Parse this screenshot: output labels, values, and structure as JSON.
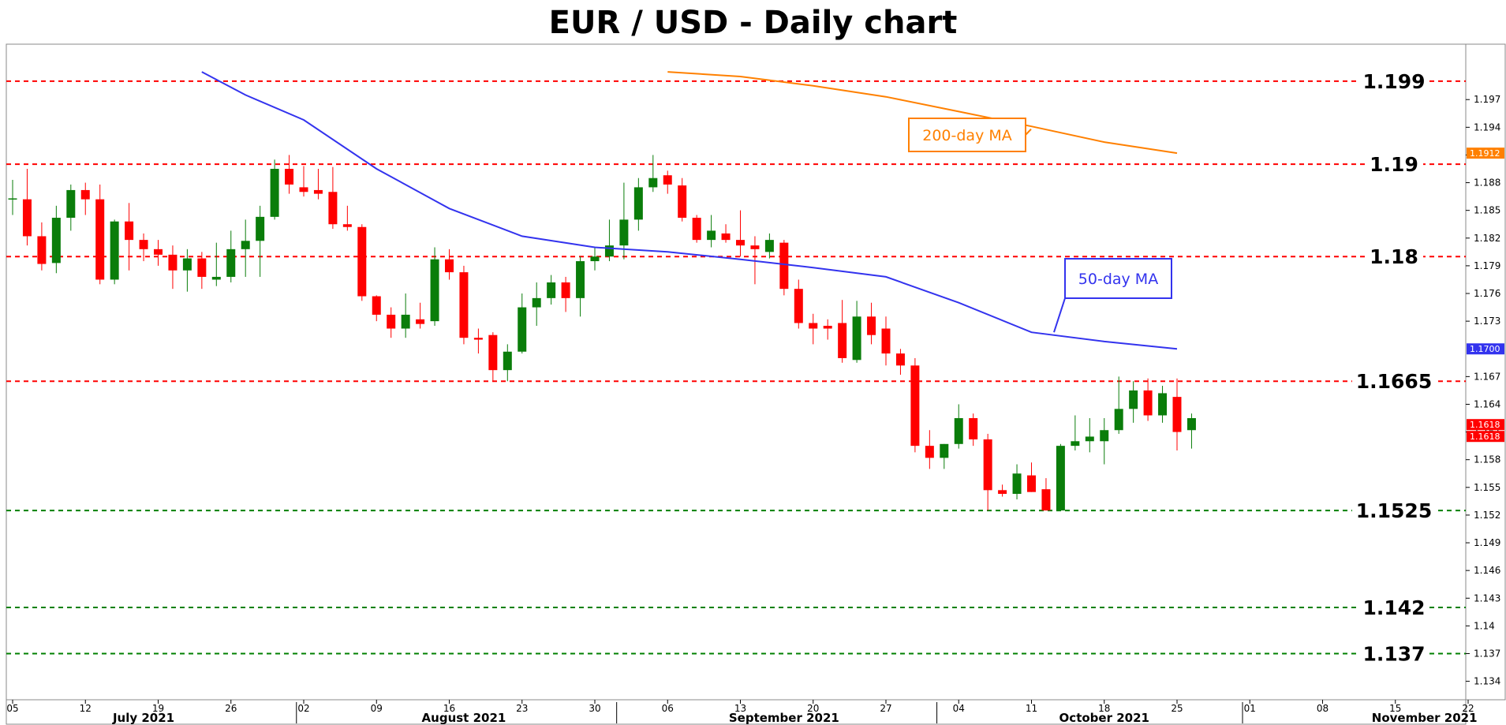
{
  "chart_data": {
    "type": "candlestick",
    "title": "EUR / USD - Daily chart",
    "ylim": [
      1.132,
      1.203
    ],
    "y_ticks": [
      {
        "value": 1.197,
        "label": "1.197"
      },
      {
        "value": 1.194,
        "label": "1.194"
      },
      {
        "value": 1.191,
        "label": "1.191"
      },
      {
        "value": 1.188,
        "label": "1.188"
      },
      {
        "value": 1.185,
        "label": "1.185"
      },
      {
        "value": 1.182,
        "label": "1.182"
      },
      {
        "value": 1.179,
        "label": "1.179"
      },
      {
        "value": 1.176,
        "label": "1.176"
      },
      {
        "value": 1.173,
        "label": "1.173"
      },
      {
        "value": 1.167,
        "label": "1.167"
      },
      {
        "value": 1.164,
        "label": "1.164"
      },
      {
        "value": 1.161,
        "label": "1.161"
      },
      {
        "value": 1.158,
        "label": "1.158"
      },
      {
        "value": 1.155,
        "label": "1.155"
      },
      {
        "value": 1.152,
        "label": "1.152"
      },
      {
        "value": 1.149,
        "label": "1.149"
      },
      {
        "value": 1.146,
        "label": "1.146"
      },
      {
        "value": 1.143,
        "label": "1.143"
      },
      {
        "value": 1.14,
        "label": "1.14"
      },
      {
        "value": 1.137,
        "label": "1.137"
      },
      {
        "value": 1.134,
        "label": "1.134"
      }
    ],
    "x_day_ticks": [
      "05",
      "12",
      "19",
      "26",
      "02",
      "09",
      "16",
      "23",
      "30",
      "06",
      "13",
      "20",
      "27",
      "04",
      "11",
      "18",
      "25",
      "01",
      "08",
      "15",
      "22"
    ],
    "x_day_tick_index": [
      0,
      5,
      10,
      15,
      20,
      25,
      30,
      35,
      40,
      45,
      50,
      55,
      60,
      65,
      70,
      75,
      80,
      85,
      90,
      95,
      100
    ],
    "month_labels": [
      {
        "label": "July 2021",
        "center_index": 9
      },
      {
        "label": "August 2021",
        "center_index": 31
      },
      {
        "label": "September 2021",
        "center_index": 53
      },
      {
        "label": "October 2021",
        "center_index": 75
      },
      {
        "label": "November 2021",
        "center_index": 97
      }
    ],
    "month_separators_index": [
      19.5,
      41.5,
      63.5,
      84.5
    ],
    "levels": [
      {
        "value": 1.199,
        "label": "1.199",
        "color": "#ff0000"
      },
      {
        "value": 1.19,
        "label": "1.19",
        "color": "#ff0000"
      },
      {
        "value": 1.18,
        "label": "1.18",
        "color": "#ff0000"
      },
      {
        "value": 1.1665,
        "label": "1.1665",
        "color": "#ff0000"
      },
      {
        "value": 1.1525,
        "label": "1.1525",
        "color": "#008000"
      },
      {
        "value": 1.142,
        "label": "1.142",
        "color": "#008000"
      },
      {
        "value": 1.137,
        "label": "1.137",
        "color": "#008000"
      }
    ],
    "moving_averages": [
      {
        "name": "50-day MA",
        "color": "#3333ee",
        "x": [
          13,
          16,
          20,
          25,
          30,
          35,
          40,
          45,
          50,
          55,
          60,
          65,
          70,
          75,
          80
        ],
        "y": [
          1.2,
          1.1975,
          1.1948,
          1.1895,
          1.1852,
          1.1822,
          1.181,
          1.1805,
          1.1797,
          1.1788,
          1.1778,
          1.175,
          1.1718,
          1.1708,
          1.17
        ]
      },
      {
        "name": "200-day MA",
        "color": "#ff8000",
        "x": [
          45,
          50,
          55,
          60,
          65,
          70,
          75,
          80
        ],
        "y": [
          1.2,
          1.1995,
          1.1985,
          1.1973,
          1.1957,
          1.1941,
          1.1924,
          1.1912
        ]
      }
    ],
    "price_badges": [
      {
        "value": 1.1912,
        "label": "1.1912",
        "color": "#ff8000"
      },
      {
        "value": 1.17,
        "label": "1.1700",
        "color": "#3333ee"
      },
      {
        "value": 1.1618,
        "label": "1.1618",
        "color": "#ff0000"
      }
    ],
    "candles": [
      {
        "o": 1.1863,
        "h": 1.1883,
        "l": 1.1845,
        "c": 1.1863
      },
      {
        "o": 1.1862,
        "h": 1.1895,
        "l": 1.1812,
        "c": 1.1822
      },
      {
        "o": 1.1822,
        "h": 1.1837,
        "l": 1.1785,
        "c": 1.1792
      },
      {
        "o": 1.1793,
        "h": 1.1855,
        "l": 1.1782,
        "c": 1.1842
      },
      {
        "o": 1.1842,
        "h": 1.1878,
        "l": 1.1828,
        "c": 1.1872
      },
      {
        "o": 1.1872,
        "h": 1.188,
        "l": 1.1845,
        "c": 1.1862
      },
      {
        "o": 1.1862,
        "h": 1.1878,
        "l": 1.177,
        "c": 1.1775
      },
      {
        "o": 1.1775,
        "h": 1.184,
        "l": 1.177,
        "c": 1.1838
      },
      {
        "o": 1.1838,
        "h": 1.1858,
        "l": 1.1785,
        "c": 1.1818
      },
      {
        "o": 1.1818,
        "h": 1.1825,
        "l": 1.1795,
        "c": 1.1808
      },
      {
        "o": 1.1808,
        "h": 1.1818,
        "l": 1.179,
        "c": 1.1802
      },
      {
        "o": 1.1802,
        "h": 1.1812,
        "l": 1.1765,
        "c": 1.1785
      },
      {
        "o": 1.1785,
        "h": 1.1808,
        "l": 1.1762,
        "c": 1.1798
      },
      {
        "o": 1.1798,
        "h": 1.1805,
        "l": 1.1765,
        "c": 1.1778
      },
      {
        "o": 1.1775,
        "h": 1.1815,
        "l": 1.1768,
        "c": 1.1778
      },
      {
        "o": 1.1778,
        "h": 1.1828,
        "l": 1.1772,
        "c": 1.1808
      },
      {
        "o": 1.1808,
        "h": 1.184,
        "l": 1.1778,
        "c": 1.1817
      },
      {
        "o": 1.1817,
        "h": 1.1855,
        "l": 1.1778,
        "c": 1.1843
      },
      {
        "o": 1.1843,
        "h": 1.1905,
        "l": 1.184,
        "c": 1.1895
      },
      {
        "o": 1.1895,
        "h": 1.191,
        "l": 1.1868,
        "c": 1.1878
      },
      {
        "o": 1.1875,
        "h": 1.1898,
        "l": 1.1865,
        "c": 1.187
      },
      {
        "o": 1.1872,
        "h": 1.1895,
        "l": 1.1862,
        "c": 1.1868
      },
      {
        "o": 1.187,
        "h": 1.1897,
        "l": 1.183,
        "c": 1.1835
      },
      {
        "o": 1.1835,
        "h": 1.1855,
        "l": 1.1828,
        "c": 1.1832
      },
      {
        "o": 1.1832,
        "h": 1.1835,
        "l": 1.1752,
        "c": 1.1757
      },
      {
        "o": 1.1757,
        "h": 1.1758,
        "l": 1.173,
        "c": 1.1737
      },
      {
        "o": 1.1737,
        "h": 1.1745,
        "l": 1.1712,
        "c": 1.1722
      },
      {
        "o": 1.1722,
        "h": 1.176,
        "l": 1.1712,
        "c": 1.1737
      },
      {
        "o": 1.1732,
        "h": 1.175,
        "l": 1.1722,
        "c": 1.1727
      },
      {
        "o": 1.173,
        "h": 1.181,
        "l": 1.1725,
        "c": 1.1797
      },
      {
        "o": 1.1797,
        "h": 1.1808,
        "l": 1.1775,
        "c": 1.1783
      },
      {
        "o": 1.1783,
        "h": 1.179,
        "l": 1.1705,
        "c": 1.1712
      },
      {
        "o": 1.1712,
        "h": 1.1722,
        "l": 1.1695,
        "c": 1.171
      },
      {
        "o": 1.1715,
        "h": 1.1718,
        "l": 1.1665,
        "c": 1.1677
      },
      {
        "o": 1.1677,
        "h": 1.1705,
        "l": 1.1665,
        "c": 1.1697
      },
      {
        "o": 1.1697,
        "h": 1.176,
        "l": 1.1695,
        "c": 1.1745
      },
      {
        "o": 1.1745,
        "h": 1.1772,
        "l": 1.1725,
        "c": 1.1755
      },
      {
        "o": 1.1755,
        "h": 1.178,
        "l": 1.1748,
        "c": 1.1772
      },
      {
        "o": 1.1772,
        "h": 1.1778,
        "l": 1.174,
        "c": 1.1755
      },
      {
        "o": 1.1755,
        "h": 1.18,
        "l": 1.1735,
        "c": 1.1795
      },
      {
        "o": 1.1795,
        "h": 1.181,
        "l": 1.1785,
        "c": 1.18
      },
      {
        "o": 1.18,
        "h": 1.184,
        "l": 1.1795,
        "c": 1.1812
      },
      {
        "o": 1.1812,
        "h": 1.188,
        "l": 1.1797,
        "c": 1.184
      },
      {
        "o": 1.184,
        "h": 1.1885,
        "l": 1.1828,
        "c": 1.1875
      },
      {
        "o": 1.1875,
        "h": 1.191,
        "l": 1.187,
        "c": 1.1885
      },
      {
        "o": 1.1888,
        "h": 1.1893,
        "l": 1.1868,
        "c": 1.1878
      },
      {
        "o": 1.1877,
        "h": 1.1885,
        "l": 1.1838,
        "c": 1.1842
      },
      {
        "o": 1.1842,
        "h": 1.1845,
        "l": 1.1815,
        "c": 1.1818
      },
      {
        "o": 1.1818,
        "h": 1.1845,
        "l": 1.181,
        "c": 1.1828
      },
      {
        "o": 1.1825,
        "h": 1.1835,
        "l": 1.1815,
        "c": 1.1818
      },
      {
        "o": 1.1818,
        "h": 1.185,
        "l": 1.18,
        "c": 1.1812
      },
      {
        "o": 1.1812,
        "h": 1.1822,
        "l": 1.177,
        "c": 1.1808
      },
      {
        "o": 1.1805,
        "h": 1.1825,
        "l": 1.1798,
        "c": 1.1818
      },
      {
        "o": 1.1815,
        "h": 1.1818,
        "l": 1.1758,
        "c": 1.1765
      },
      {
        "o": 1.1765,
        "h": 1.1775,
        "l": 1.1722,
        "c": 1.1728
      },
      {
        "o": 1.1728,
        "h": 1.1738,
        "l": 1.1705,
        "c": 1.1722
      },
      {
        "o": 1.1725,
        "h": 1.1732,
        "l": 1.171,
        "c": 1.1722
      },
      {
        "o": 1.1728,
        "h": 1.1753,
        "l": 1.1685,
        "c": 1.169
      },
      {
        "o": 1.1688,
        "h": 1.1752,
        "l": 1.1685,
        "c": 1.1735
      },
      {
        "o": 1.1735,
        "h": 1.175,
        "l": 1.1705,
        "c": 1.1715
      },
      {
        "o": 1.1722,
        "h": 1.1735,
        "l": 1.1682,
        "c": 1.1695
      },
      {
        "o": 1.1695,
        "h": 1.17,
        "l": 1.1672,
        "c": 1.1682
      },
      {
        "o": 1.1682,
        "h": 1.169,
        "l": 1.1588,
        "c": 1.1595
      },
      {
        "o": 1.1595,
        "h": 1.1612,
        "l": 1.157,
        "c": 1.1582
      },
      {
        "o": 1.1582,
        "h": 1.1597,
        "l": 1.157,
        "c": 1.1597
      },
      {
        "o": 1.1597,
        "h": 1.164,
        "l": 1.1592,
        "c": 1.1625
      },
      {
        "o": 1.1625,
        "h": 1.163,
        "l": 1.1595,
        "c": 1.1602
      },
      {
        "o": 1.1602,
        "h": 1.1608,
        "l": 1.1525,
        "c": 1.1547
      },
      {
        "o": 1.1547,
        "h": 1.1553,
        "l": 1.154,
        "c": 1.1543
      },
      {
        "o": 1.1543,
        "h": 1.1575,
        "l": 1.1537,
        "c": 1.1565
      },
      {
        "o": 1.1563,
        "h": 1.1577,
        "l": 1.1545,
        "c": 1.1545
      },
      {
        "o": 1.1548,
        "h": 1.156,
        "l": 1.1525,
        "c": 1.1525
      },
      {
        "o": 1.1525,
        "h": 1.1597,
        "l": 1.1525,
        "c": 1.1595
      },
      {
        "o": 1.1595,
        "h": 1.1628,
        "l": 1.159,
        "c": 1.16
      },
      {
        "o": 1.16,
        "h": 1.1625,
        "l": 1.1588,
        "c": 1.1605
      },
      {
        "o": 1.16,
        "h": 1.1625,
        "l": 1.1575,
        "c": 1.1612
      },
      {
        "o": 1.1612,
        "h": 1.167,
        "l": 1.1608,
        "c": 1.1635
      },
      {
        "o": 1.1635,
        "h": 1.1665,
        "l": 1.162,
        "c": 1.1655
      },
      {
        "o": 1.1655,
        "h": 1.1668,
        "l": 1.1622,
        "c": 1.1628
      },
      {
        "o": 1.1628,
        "h": 1.166,
        "l": 1.162,
        "c": 1.1652
      },
      {
        "o": 1.1648,
        "h": 1.1668,
        "l": 1.159,
        "c": 1.161
      },
      {
        "o": 1.1612,
        "h": 1.163,
        "l": 1.1592,
        "c": 1.1625
      }
    ]
  }
}
